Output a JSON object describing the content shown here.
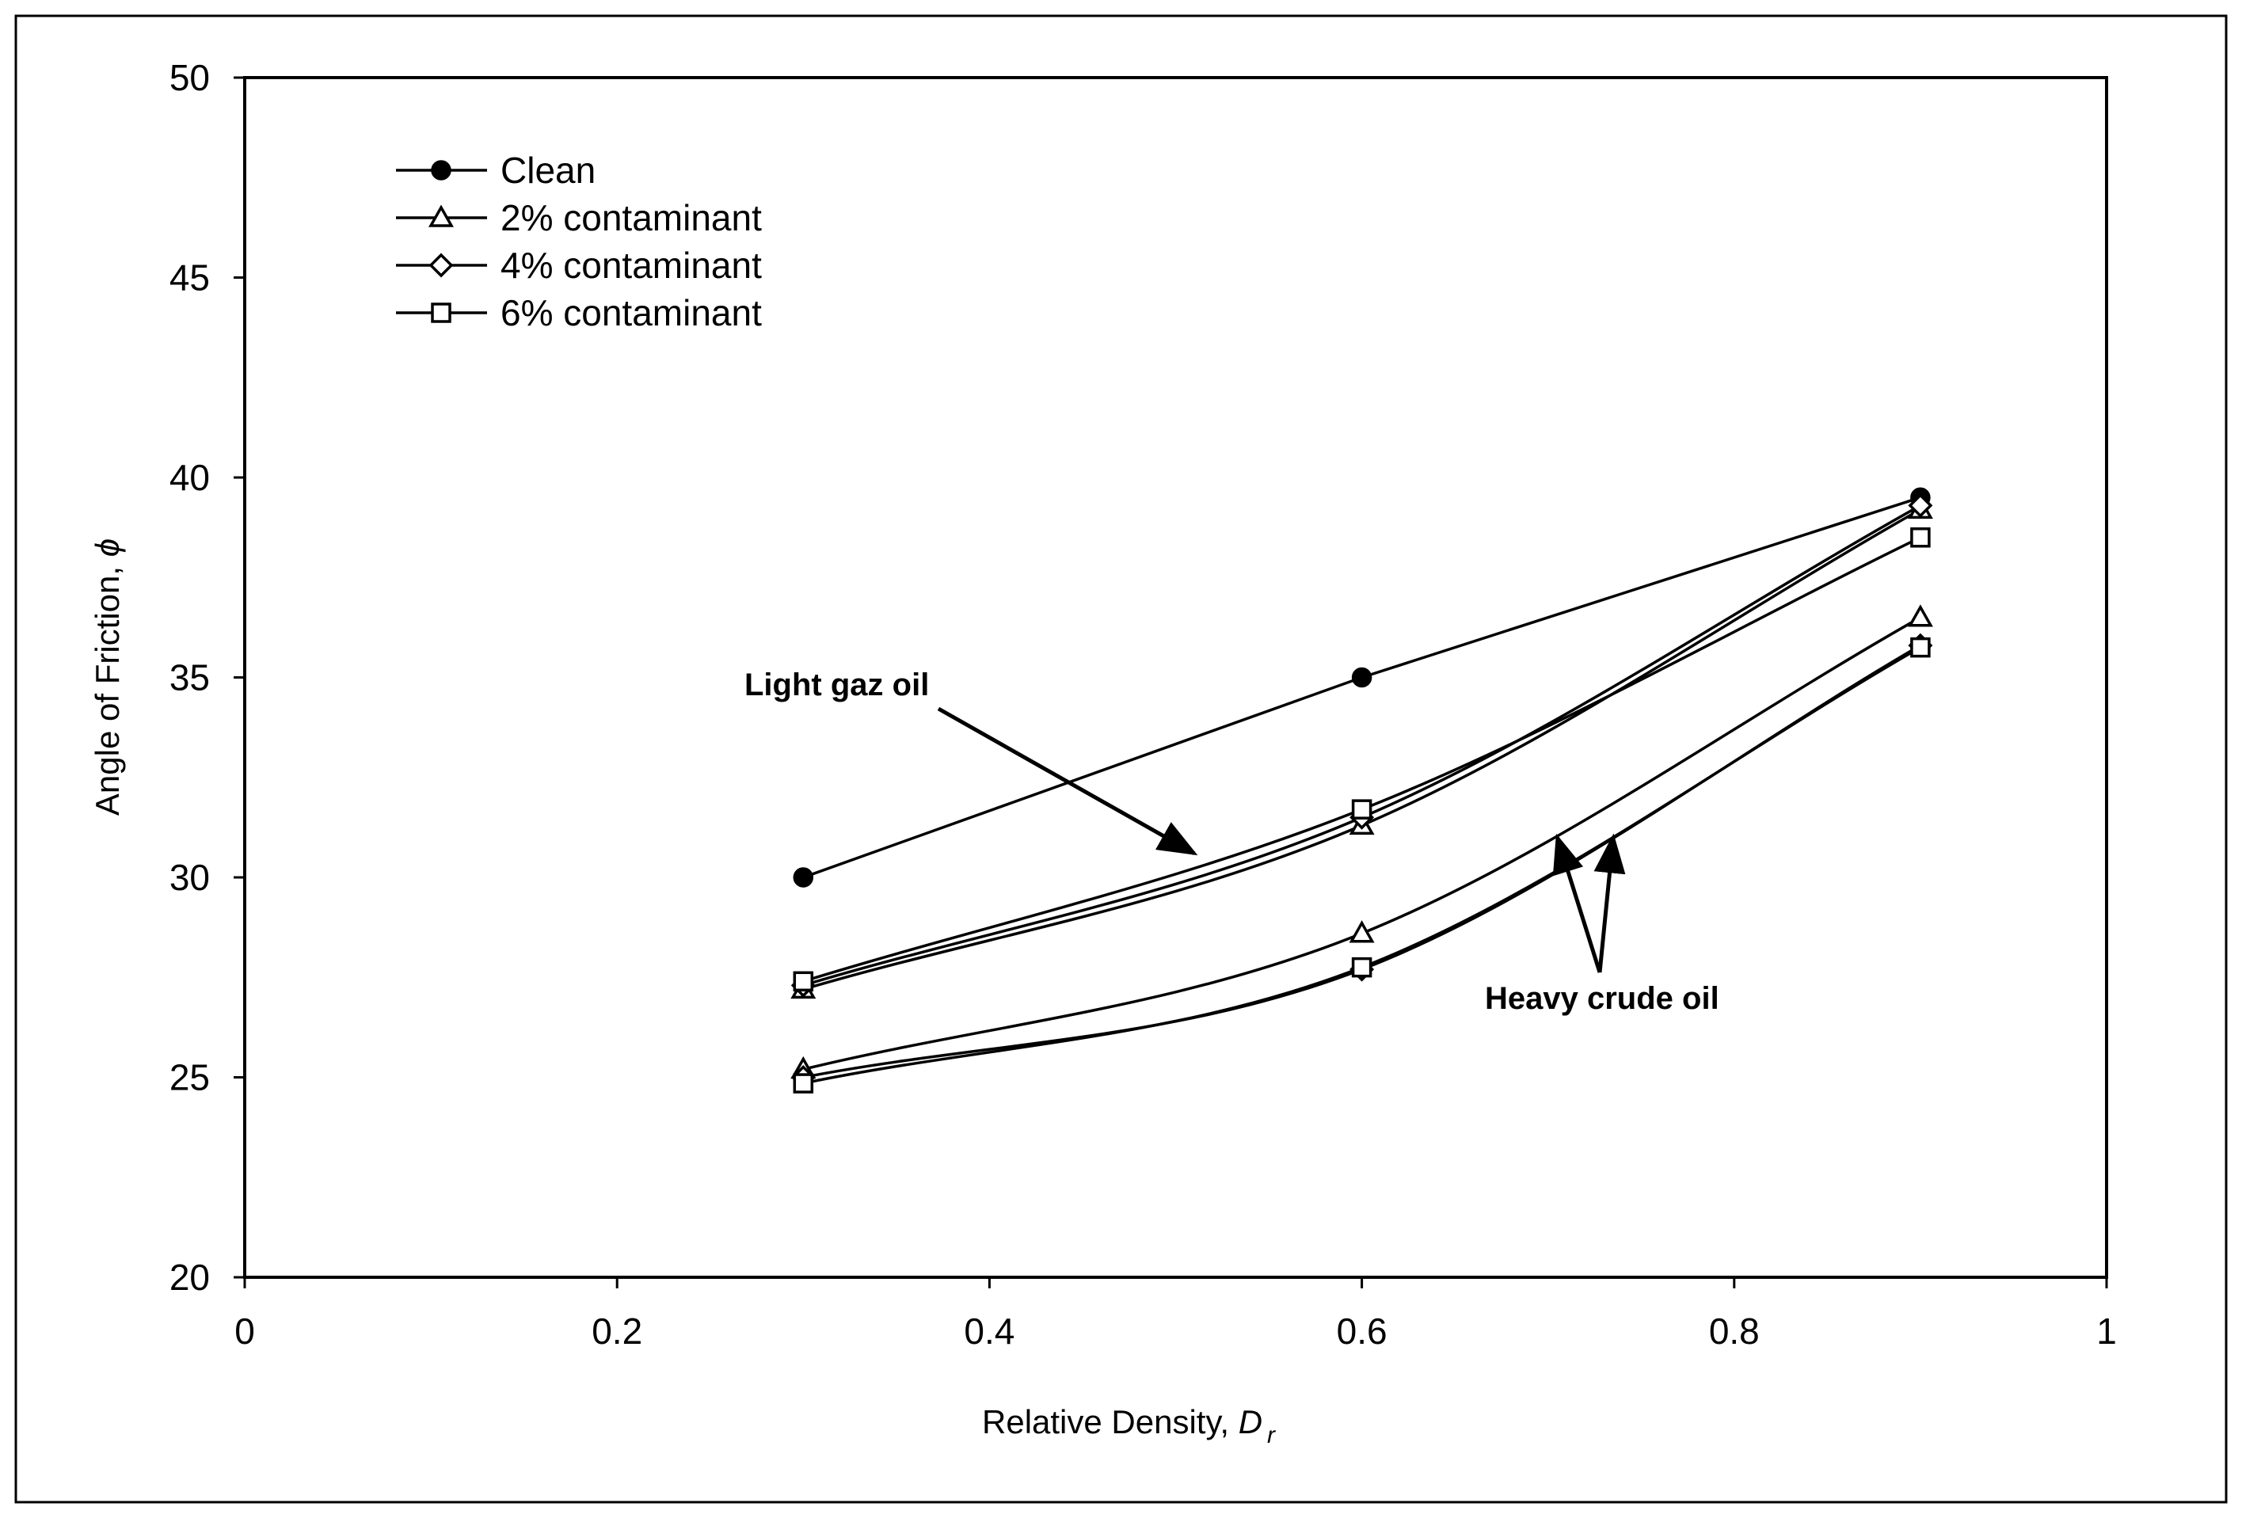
{
  "chart_data": {
    "type": "line",
    "title": "",
    "xlabel": "Relative Density, ",
    "xlabel_symbol": "D",
    "xlabel_sub": "r",
    "ylabel": "Angle of Friction, ",
    "ylabel_symbol": "ϕ",
    "xlim": [
      0,
      1
    ],
    "ylim": [
      20,
      50
    ],
    "xticks": [
      0,
      0.2,
      0.4,
      0.6,
      0.8,
      1
    ],
    "xtick_labels": [
      "0",
      "0.2",
      "0.4",
      "0.6",
      "0.8",
      "1"
    ],
    "yticks": [
      20,
      25,
      30,
      35,
      40,
      45,
      50
    ],
    "ytick_labels": [
      "20",
      "25",
      "30",
      "35",
      "40",
      "45",
      "50"
    ],
    "grid": false,
    "legend_position": "top-left",
    "x": [
      0.3,
      0.6,
      0.9
    ],
    "legend": [
      {
        "name": "Clean",
        "marker": "filled-circle"
      },
      {
        "name": "2% contaminant",
        "marker": "open-triangle"
      },
      {
        "name": "4% contaminant",
        "marker": "open-diamond"
      },
      {
        "name": "6% contaminant",
        "marker": "open-square"
      }
    ],
    "series": [
      {
        "name": "Clean",
        "group": "Clean",
        "marker": "filled-circle",
        "smooth": false,
        "values": [
          30.0,
          35.0,
          39.5
        ]
      },
      {
        "name": "2% contaminant",
        "group": "Light gaz oil",
        "marker": "open-triangle",
        "smooth": true,
        "values": [
          27.2,
          31.3,
          39.2
        ]
      },
      {
        "name": "4% contaminant",
        "group": "Light gaz oil",
        "marker": "open-diamond",
        "smooth": true,
        "values": [
          27.3,
          31.5,
          39.3
        ]
      },
      {
        "name": "6% contaminant",
        "group": "Light gaz oil",
        "marker": "open-square",
        "smooth": true,
        "values": [
          27.4,
          31.7,
          38.5
        ]
      },
      {
        "name": "2% contaminant",
        "group": "Heavy crude oil",
        "marker": "open-triangle",
        "smooth": true,
        "values": [
          25.2,
          28.6,
          36.5
        ]
      },
      {
        "name": "4% contaminant",
        "group": "Heavy crude oil",
        "marker": "open-diamond",
        "smooth": true,
        "values": [
          25.0,
          27.7,
          35.8
        ]
      },
      {
        "name": "6% contaminant",
        "group": "Heavy crude oil",
        "marker": "open-square",
        "smooth": true,
        "values": [
          24.85,
          27.75,
          35.75
        ]
      }
    ],
    "annotations": [
      {
        "text": "Light gaz oil",
        "arrow_targets": [
          {
            "x": 0.51,
            "y": 30.6
          }
        ]
      },
      {
        "text": "Heavy crude oil",
        "arrow_targets": [
          {
            "x": 0.705,
            "y": 31.0
          },
          {
            "x": 0.735,
            "y": 31.0
          }
        ]
      }
    ]
  }
}
